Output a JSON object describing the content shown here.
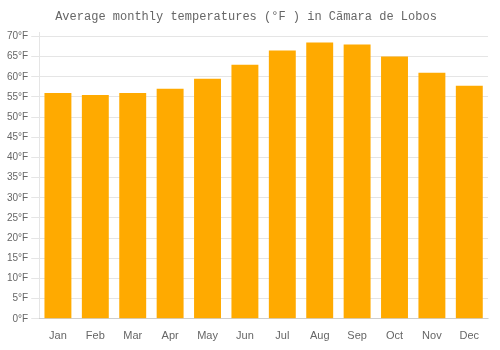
{
  "chart_data": {
    "type": "bar",
    "title": "Average monthly temperatures (°F ) in Cãmara de Lobos",
    "categories": [
      "Jan",
      "Feb",
      "Mar",
      "Apr",
      "May",
      "Jun",
      "Jul",
      "Aug",
      "Sep",
      "Oct",
      "Nov",
      "Dec"
    ],
    "values": [
      56.0,
      55.5,
      56.0,
      57.0,
      59.5,
      63.0,
      66.5,
      68.5,
      68.0,
      65.0,
      61.0,
      57.8
    ],
    "color": "#FFAA00",
    "ylim": [
      0,
      71
    ],
    "yticks": [
      {
        "value": 0,
        "label": "0°F"
      },
      {
        "value": 5,
        "label": "5°F"
      },
      {
        "value": 10,
        "label": "10°F"
      },
      {
        "value": 15,
        "label": "15°F"
      },
      {
        "value": 20,
        "label": "20°F"
      },
      {
        "value": 25,
        "label": "25°F"
      },
      {
        "value": 30,
        "label": "30°F"
      },
      {
        "value": 35,
        "label": "35°F"
      },
      {
        "value": 40,
        "label": "40°F"
      },
      {
        "value": 45,
        "label": "45°F"
      },
      {
        "value": 50,
        "label": "50°F"
      },
      {
        "value": 55,
        "label": "55°F"
      },
      {
        "value": 60,
        "label": "60°F"
      },
      {
        "value": 65,
        "label": "65°F"
      },
      {
        "value": 70,
        "label": "70°F"
      }
    ],
    "grid": true
  }
}
